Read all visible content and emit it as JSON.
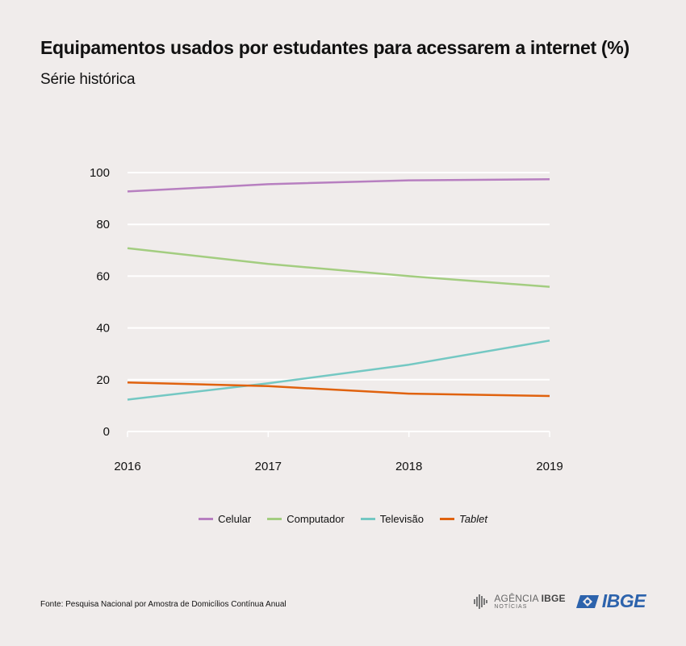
{
  "header": {
    "title": "Equipamentos usados por estudantes para acessarem a internet (%)",
    "subtitle": "Série histórica"
  },
  "chart_data": {
    "type": "line",
    "x": [
      "2016",
      "2017",
      "2018",
      "2019"
    ],
    "ylim": [
      0,
      100
    ],
    "yticks": [
      0,
      20,
      40,
      60,
      80,
      100
    ],
    "grid": true,
    "legend_position": "bottom",
    "series": [
      {
        "name": "Celular",
        "values": [
          92.7,
          95.5,
          97.0,
          97.4
        ],
        "color": "#b77fc0"
      },
      {
        "name": "Computador",
        "values": [
          70.8,
          64.7,
          60.0,
          55.9
        ],
        "color": "#a3cd80"
      },
      {
        "name": "Televisão",
        "values": [
          12.3,
          18.6,
          25.8,
          35.1
        ],
        "color": "#74c8c3"
      },
      {
        "name": "Tablet",
        "values": [
          18.9,
          17.5,
          14.6,
          13.7
        ],
        "color": "#e0620e"
      }
    ]
  },
  "footer": {
    "source": "Fonte: Pesquisa Nacional por Amostra de Domicílios Contínua Anual",
    "agencia_label": "AGÊNCIA",
    "agencia_brand": "IBGE",
    "agencia_sub": "NOTÍCIAS",
    "ibge_logo": "IBGE"
  }
}
